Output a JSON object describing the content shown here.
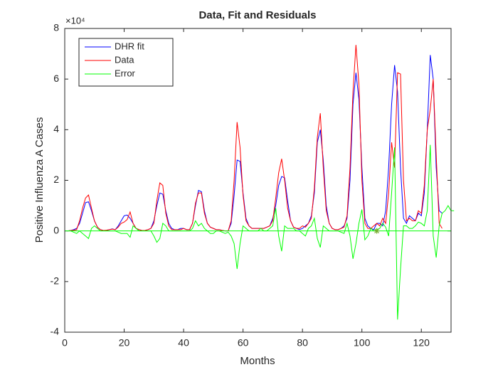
{
  "chart_data": {
    "type": "line",
    "title": "Data, Fit and Residuals",
    "xlabel": "Months",
    "ylabel": "Positive Influenza A Cases",
    "y_exponent_label": "×10⁴",
    "xlim": [
      0,
      130
    ],
    "xticks": [
      0,
      20,
      40,
      60,
      80,
      100,
      120
    ],
    "ylim": [
      -4,
      8
    ],
    "yticks": [
      -4,
      -2,
      0,
      2,
      4,
      6,
      8
    ],
    "legend": "northwest",
    "reference_line": 0,
    "reference_color": "#00ff00",
    "marker": {
      "x": 105,
      "y": 0,
      "color": "#77ac30"
    },
    "x": [
      1,
      2,
      3,
      4,
      5,
      6,
      7,
      8,
      9,
      10,
      11,
      12,
      13,
      14,
      15,
      16,
      17,
      18,
      19,
      20,
      21,
      22,
      23,
      24,
      25,
      26,
      27,
      28,
      29,
      30,
      31,
      32,
      33,
      34,
      35,
      36,
      37,
      38,
      39,
      40,
      41,
      42,
      43,
      44,
      45,
      46,
      47,
      48,
      49,
      50,
      51,
      52,
      53,
      54,
      55,
      56,
      57,
      58,
      59,
      60,
      61,
      62,
      63,
      64,
      65,
      66,
      67,
      68,
      69,
      70,
      71,
      72,
      73,
      74,
      75,
      76,
      77,
      78,
      79,
      80,
      81,
      82,
      83,
      84,
      85,
      86,
      87,
      88,
      89,
      90,
      91,
      92,
      93,
      94,
      95,
      96,
      97,
      98,
      99,
      100,
      101,
      102,
      103,
      104,
      105,
      106,
      107,
      108,
      109,
      110,
      111,
      112,
      113,
      114,
      115,
      116,
      117,
      118,
      119,
      120,
      121,
      122,
      123,
      124,
      125,
      126,
      127,
      128,
      129,
      130,
      131
    ],
    "series": [
      {
        "name": "DHR fit",
        "color": "#0000ff",
        "values": [
          0,
          0.02,
          0.05,
          0.1,
          0.3,
          0.7,
          1.12,
          1.15,
          0.8,
          0.4,
          0.15,
          0.05,
          0.02,
          0.02,
          0.05,
          0.08,
          0.05,
          0.2,
          0.4,
          0.6,
          0.63,
          0.5,
          0.3,
          0.1,
          0.05,
          0.02,
          0.02,
          0.05,
          0.1,
          0.4,
          1.0,
          1.5,
          1.45,
          0.8,
          0.3,
          0.1,
          0.05,
          0.05,
          0.1,
          0.1,
          0.05,
          0.05,
          0.3,
          1.0,
          1.6,
          1.55,
          0.8,
          0.3,
          0.15,
          0.1,
          0.05,
          0.05,
          0.02,
          0,
          0,
          0.3,
          1.4,
          2.8,
          2.75,
          1.5,
          0.5,
          0.2,
          0.1,
          0.1,
          0.1,
          0.1,
          0.1,
          0.15,
          0.2,
          0.5,
          1.0,
          1.8,
          2.15,
          2.1,
          1.2,
          0.4,
          0.15,
          0.1,
          0.05,
          0.1,
          0.2,
          0.3,
          0.6,
          1.5,
          3.5,
          4.0,
          2.8,
          1.0,
          0.3,
          0.1,
          0.05,
          0.05,
          0.1,
          0.2,
          0.5,
          2.0,
          5.0,
          6.25,
          5.2,
          2.5,
          0.5,
          0.2,
          0.1,
          0.05,
          0.3,
          0.3,
          0.2,
          0.8,
          2.5,
          5.0,
          6.55,
          5.5,
          2.5,
          0.5,
          0.3,
          0.6,
          0.5,
          0.4,
          0.7,
          0.6,
          1.5,
          4.0,
          6.95,
          6.0,
          2.5,
          0.8,
          0.7,
          null,
          null,
          null,
          null
        ]
      },
      {
        "name": "Data",
        "color": "#ff0000",
        "values": [
          0,
          0.02,
          0.03,
          0.05,
          0.4,
          0.9,
          1.3,
          1.42,
          0.9,
          0.4,
          0.15,
          0.05,
          0.02,
          0.03,
          0.05,
          0.07,
          0.05,
          0.15,
          0.3,
          0.35,
          0.45,
          0.75,
          0.3,
          0.1,
          0.05,
          0.02,
          0.02,
          0.05,
          0.1,
          0.3,
          1.2,
          1.9,
          1.8,
          0.7,
          0.2,
          0.05,
          0.05,
          0.05,
          0.05,
          0.1,
          0.05,
          0.05,
          0.3,
          1.1,
          1.5,
          1.5,
          0.7,
          0.3,
          0.15,
          0.1,
          0.05,
          0.05,
          0.02,
          0,
          0,
          0.4,
          2.0,
          4.3,
          3.3,
          1.4,
          0.4,
          0.2,
          0.1,
          0.1,
          0.1,
          0.1,
          0.1,
          0.15,
          0.2,
          0.4,
          1.3,
          2.3,
          2.85,
          2.0,
          0.9,
          0.4,
          0.15,
          0.1,
          0.1,
          0.2,
          0.15,
          0.3,
          0.5,
          1.7,
          3.7,
          4.65,
          2.5,
          0.8,
          0.3,
          0.1,
          0.05,
          0.05,
          0.1,
          0.15,
          0.6,
          2.5,
          5.5,
          7.35,
          5.8,
          2.0,
          0.3,
          0.1,
          0.1,
          0.2,
          0.3,
          0.2,
          0.5,
          0.3,
          1.5,
          3.5,
          2.5,
          6.25,
          6.2,
          2.0,
          0.4,
          0.5,
          0.4,
          0.4,
          0.8,
          0.7,
          1.8,
          4.0,
          4.8,
          6.0,
          3.0,
          0.3,
          0.1,
          null,
          null,
          null,
          null
        ]
      },
      {
        "name": "Error",
        "color": "#00ff00",
        "values": [
          0,
          0,
          -0.05,
          -0.1,
          0,
          -0.1,
          -0.2,
          -0.3,
          0.1,
          0.2,
          0.1,
          0,
          0,
          0,
          0,
          0,
          0,
          -0.05,
          -0.1,
          -0.1,
          -0.1,
          -0.25,
          0.2,
          0.1,
          0,
          0,
          0,
          0,
          0,
          -0.2,
          -0.45,
          -0.3,
          0.3,
          0.2,
          0,
          0,
          0,
          0,
          0,
          0,
          0,
          0,
          0.1,
          0.4,
          0.2,
          0.3,
          0.1,
          0,
          -0.1,
          -0.1,
          0,
          0,
          -0.05,
          -0.1,
          -0.05,
          -0.2,
          -0.5,
          -1.5,
          -0.5,
          0.2,
          0.1,
          0,
          0,
          0,
          0,
          0.1,
          0,
          0,
          0.1,
          0.2,
          0.9,
          -0.2,
          -0.8,
          0.2,
          0.1,
          0.1,
          0.1,
          0,
          0,
          -0.1,
          -0.2,
          0.1,
          0.2,
          0.5,
          -0.3,
          -0.65,
          0.2,
          0.1,
          0,
          0,
          0,
          0,
          -0.05,
          -0.1,
          0.3,
          -0.2,
          -1.1,
          -0.5,
          0.3,
          0.85,
          -0.35,
          -0.2,
          0.1,
          0,
          0.05,
          0.1,
          0.3,
          0.15,
          -0.2,
          1.5,
          3.3,
          -3.5,
          -1.5,
          0.2,
          0.2,
          0.1,
          0.1,
          0.2,
          0.35,
          0.3,
          0.2,
          0.8,
          3.4,
          -0.2,
          -1.05,
          0.2,
          0.7,
          0.8,
          1.0,
          0.8,
          0.8
        ]
      }
    ]
  }
}
